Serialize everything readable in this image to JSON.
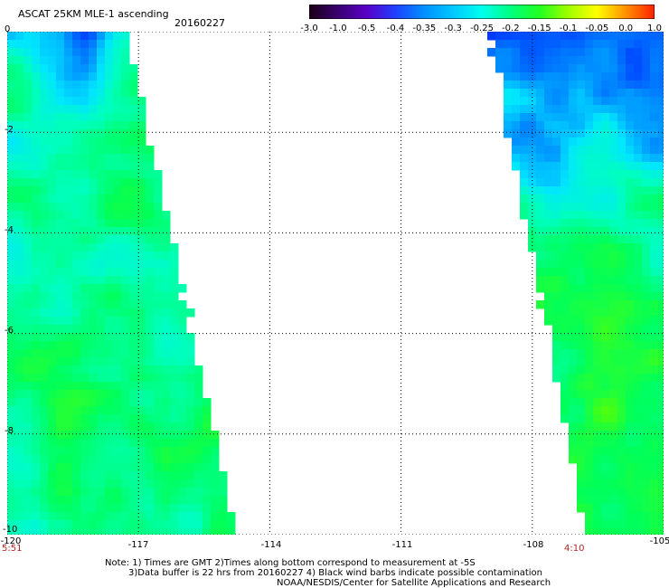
{
  "header": {
    "title": "ASCAT 25KM MLE-1 ascending",
    "date": "20160227"
  },
  "colorbar": {
    "labels": [
      "-3.0",
      "-1.0",
      "-0.5",
      "-0.4",
      "-0.35",
      "-0.3",
      "-0.25",
      "-0.2",
      "-0.15",
      "-0.1",
      "-0.05",
      "0.0",
      "1.0"
    ],
    "colors": [
      "#1a0016",
      "#3a0070",
      "#5a00c8",
      "#2040ff",
      "#0090ff",
      "#00c8ff",
      "#00ffee",
      "#00ff80",
      "#20ff20",
      "#a0ff00",
      "#ffff00",
      "#ff9000",
      "#ff2000"
    ]
  },
  "map": {
    "lon_range": [
      -120,
      -105
    ],
    "lat_range": [
      -10,
      0
    ],
    "x_ticks": [
      "-120",
      "-117",
      "-114",
      "-111",
      "-108",
      "-105"
    ],
    "y_ticks": [
      "0",
      "-2",
      "-4",
      "-6",
      "-8",
      "-10"
    ],
    "pass_times": [
      "5:51",
      "4:10"
    ]
  },
  "notes": {
    "line1": "Note: 1) Times are GMT 2)Times along bottom correspond to measurement at -5S",
    "line2": "3)Data buffer is 22 hrs from 20160227 4) Black wind barbs indicate possible contamination",
    "line3": "NOAA/NESDIS/Center for Satellite Applications and Research"
  }
}
